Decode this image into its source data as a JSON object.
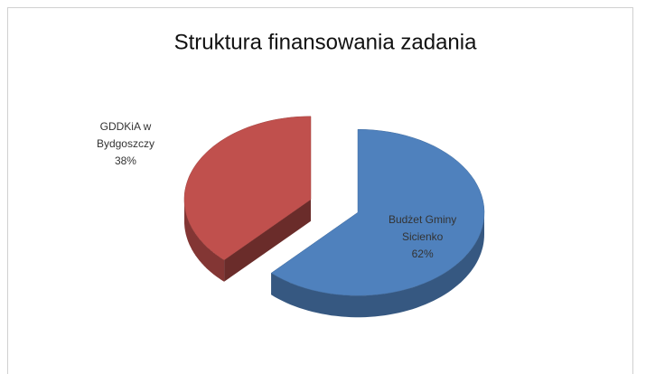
{
  "chart_data": {
    "type": "pie",
    "title": "Struktura finansowania zadania",
    "categories": [
      "Budżet Gminy Sicienko",
      "GDDKiA w Bydgoszczy"
    ],
    "values": [
      62,
      38
    ],
    "value_labels": [
      "62%",
      "38%"
    ],
    "colors": [
      "#4f81bd",
      "#c0504d"
    ]
  }
}
